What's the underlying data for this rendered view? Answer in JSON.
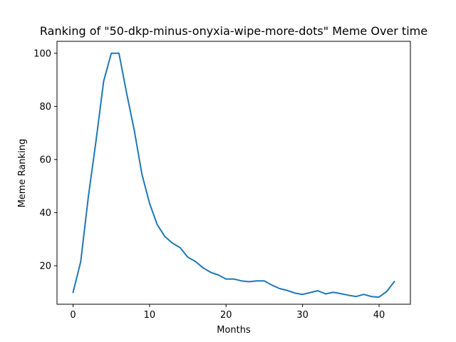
{
  "chart_data": {
    "type": "line",
    "title": "Ranking of \"50-dkp-minus-onyxia-wipe-more-dots\" Meme Over time",
    "xlabel": "Months",
    "ylabel": "Meme Ranking",
    "xlim": [
      -2.1,
      44.1
    ],
    "ylim": [
      5.5,
      104.5
    ],
    "xticks": [
      0,
      10,
      20,
      30,
      40
    ],
    "yticks": [
      20,
      40,
      60,
      80,
      100
    ],
    "grid": false,
    "line_color": "#1f77b4",
    "series": [
      {
        "x": [
          0,
          1,
          2,
          3,
          4,
          5,
          6,
          7,
          8,
          9,
          10,
          11,
          12,
          13,
          14,
          15,
          16,
          17,
          18,
          19,
          20,
          21,
          22,
          23,
          24,
          25,
          26,
          27,
          28,
          29,
          30,
          31,
          32,
          33,
          34,
          35,
          36,
          37,
          38,
          39,
          40,
          41,
          42
        ],
        "values": [
          10,
          21.5,
          46,
          67,
          89.5,
          100,
          100,
          85,
          71,
          54.5,
          43.5,
          35.5,
          31,
          28.5,
          26.8,
          23.2,
          21.6,
          19.2,
          17.5,
          16.5,
          15,
          15,
          14.3,
          14,
          14.3,
          14.3,
          12.7,
          11.4,
          10.7,
          9.7,
          9.2,
          9.9,
          10.6,
          9.4,
          10,
          9.5,
          8.9,
          8.4,
          9.2,
          8.4,
          8.2,
          10.3,
          14
        ]
      }
    ]
  }
}
